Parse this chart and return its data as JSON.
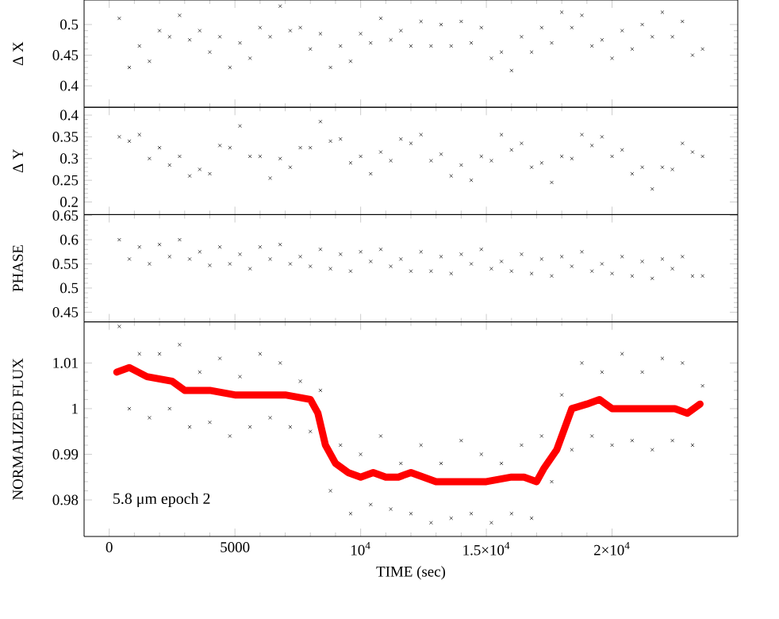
{
  "chart_data": [
    {
      "type": "scatter",
      "ylabel": "Δ X",
      "marker": "cross",
      "tick_labels": "y",
      "xlim": [
        -1000,
        25000
      ],
      "xticks": [
        0,
        5000,
        10000,
        15000,
        20000
      ],
      "ylim": [
        0.365,
        0.54
      ],
      "yticks": [
        0.4,
        0.45,
        0.5
      ],
      "series": [
        {
          "color": "#000000",
          "x": [
            400,
            800,
            1200,
            1600,
            2000,
            2400,
            2800,
            3200,
            3600,
            4000,
            4400,
            4800,
            5200,
            5600,
            6000,
            6400,
            6800,
            7200,
            7600,
            8000,
            8400,
            8800,
            9200,
            9600,
            10000,
            10400,
            10800,
            11200,
            11600,
            12000,
            12400,
            12800,
            13200,
            13600,
            14000,
            14400,
            14800,
            15200,
            15600,
            16000,
            16400,
            16800,
            17200,
            17600,
            18000,
            18400,
            18800,
            19200,
            19600,
            20000,
            20400,
            20800,
            21200,
            21600,
            22000,
            22400,
            22800,
            23200,
            23600
          ],
          "values": [
            0.51,
            0.43,
            0.465,
            0.44,
            0.49,
            0.48,
            0.515,
            0.475,
            0.49,
            0.455,
            0.48,
            0.43,
            0.47,
            0.445,
            0.495,
            0.48,
            0.53,
            0.49,
            0.495,
            0.46,
            0.485,
            0.43,
            0.465,
            0.44,
            0.485,
            0.47,
            0.51,
            0.475,
            0.49,
            0.465,
            0.505,
            0.465,
            0.5,
            0.465,
            0.505,
            0.47,
            0.495,
            0.445,
            0.455,
            0.425,
            0.48,
            0.455,
            0.495,
            0.47,
            0.52,
            0.495,
            0.515,
            0.465,
            0.475,
            0.445,
            0.49,
            0.46,
            0.5,
            0.48,
            0.52,
            0.48,
            0.505,
            0.45,
            0.46
          ]
        }
      ]
    },
    {
      "type": "scatter",
      "ylabel": "Δ Y",
      "marker": "cross",
      "tick_labels": "y",
      "xlim": [
        -1000,
        25000
      ],
      "xticks": [
        0,
        5000,
        10000,
        15000,
        20000
      ],
      "ylim": [
        0.171,
        0.418
      ],
      "yticks": [
        0.2,
        0.25,
        0.3,
        0.35,
        0.4
      ],
      "series": [
        {
          "color": "#000000",
          "x": [
            400,
            800,
            1200,
            1600,
            2000,
            2400,
            2800,
            3200,
            3600,
            4000,
            4400,
            4800,
            5200,
            5600,
            6000,
            6400,
            6800,
            7200,
            7600,
            8000,
            8400,
            8800,
            9200,
            9600,
            10000,
            10400,
            10800,
            11200,
            11600,
            12000,
            12400,
            12800,
            13200,
            13600,
            14000,
            14400,
            14800,
            15200,
            15600,
            16000,
            16400,
            16800,
            17200,
            17600,
            18000,
            18400,
            18800,
            19200,
            19600,
            20000,
            20400,
            20800,
            21200,
            21600,
            22000,
            22400,
            22800,
            23200,
            23600
          ],
          "values": [
            0.35,
            0.34,
            0.355,
            0.3,
            0.325,
            0.285,
            0.305,
            0.26,
            0.275,
            0.265,
            0.33,
            0.325,
            0.375,
            0.305,
            0.305,
            0.255,
            0.3,
            0.28,
            0.325,
            0.325,
            0.385,
            0.34,
            0.345,
            0.29,
            0.305,
            0.265,
            0.315,
            0.295,
            0.345,
            0.335,
            0.355,
            0.295,
            0.31,
            0.26,
            0.285,
            0.25,
            0.305,
            0.295,
            0.355,
            0.32,
            0.335,
            0.28,
            0.29,
            0.245,
            0.305,
            0.3,
            0.355,
            0.33,
            0.35,
            0.305,
            0.32,
            0.265,
            0.28,
            0.23,
            0.28,
            0.275,
            0.335,
            0.315,
            0.305
          ]
        }
      ]
    },
    {
      "type": "scatter",
      "ylabel": "PHASE",
      "marker": "cross",
      "tick_labels": "y",
      "xlim": [
        -1000,
        25000
      ],
      "xticks": [
        0,
        5000,
        10000,
        15000,
        20000
      ],
      "ylim": [
        0.43,
        0.652
      ],
      "yticks": [
        0.45,
        0.5,
        0.55,
        0.6,
        0.65
      ],
      "series": [
        {
          "color": "#000000",
          "x": [
            400,
            800,
            1200,
            1600,
            2000,
            2400,
            2800,
            3200,
            3600,
            4000,
            4400,
            4800,
            5200,
            5600,
            6000,
            6400,
            6800,
            7200,
            7600,
            8000,
            8400,
            8800,
            9200,
            9600,
            10000,
            10400,
            10800,
            11200,
            11600,
            12000,
            12400,
            12800,
            13200,
            13600,
            14000,
            14400,
            14800,
            15200,
            15600,
            16000,
            16400,
            16800,
            17200,
            17600,
            18000,
            18400,
            18800,
            19200,
            19600,
            20000,
            20400,
            20800,
            21200,
            21600,
            22000,
            22400,
            22800,
            23200,
            23600
          ],
          "values": [
            0.6,
            0.56,
            0.585,
            0.55,
            0.59,
            0.565,
            0.6,
            0.56,
            0.575,
            0.547,
            0.585,
            0.55,
            0.57,
            0.54,
            0.585,
            0.56,
            0.59,
            0.55,
            0.565,
            0.545,
            0.58,
            0.54,
            0.57,
            0.535,
            0.575,
            0.555,
            0.58,
            0.545,
            0.56,
            0.535,
            0.575,
            0.535,
            0.565,
            0.53,
            0.57,
            0.55,
            0.58,
            0.54,
            0.555,
            0.535,
            0.57,
            0.53,
            0.56,
            0.525,
            0.565,
            0.545,
            0.575,
            0.535,
            0.55,
            0.53,
            0.565,
            0.525,
            0.555,
            0.52,
            0.56,
            0.54,
            0.565,
            0.525,
            0.525
          ]
        }
      ]
    },
    {
      "type": "scatter",
      "ylabel": "NORMALIZED FLUX",
      "xlabel": "TIME (sec)",
      "marker": "cross",
      "xlim": [
        -1000,
        25000
      ],
      "xticks": [
        0,
        5000,
        {
          "value": 10000,
          "label": "10$^{4}$"
        },
        {
          "value": 15000,
          "label": "1.5×10$^{4}$"
        },
        {
          "value": 20000,
          "label": "2×10$^{4}$"
        }
      ],
      "ylim": [
        0.972,
        1.019
      ],
      "yticks": [
        0.98,
        0.99,
        1,
        1.01
      ],
      "annotations": [
        "5.8 μm epoch 2"
      ],
      "series": [
        {
          "color": "#000000",
          "x": [
            400,
            800,
            1200,
            1600,
            2000,
            2400,
            2800,
            3200,
            3600,
            4000,
            4400,
            4800,
            5200,
            5600,
            6000,
            6400,
            6800,
            7200,
            7600,
            8000,
            8400,
            8800,
            9200,
            9600,
            10000,
            10400,
            10800,
            11200,
            11600,
            12000,
            12400,
            12800,
            13200,
            13600,
            14000,
            14400,
            14800,
            15200,
            15600,
            16000,
            16400,
            16800,
            17200,
            17600,
            18000,
            18400,
            18800,
            19200,
            19600,
            20000,
            20400,
            20800,
            21200,
            21600,
            22000,
            22400,
            22800,
            23200,
            23600
          ],
          "values": [
            1.018,
            1.0,
            1.012,
            0.998,
            1.012,
            1.0,
            1.014,
            0.996,
            1.008,
            0.997,
            1.011,
            0.994,
            1.007,
            0.996,
            1.012,
            0.998,
            1.01,
            0.996,
            1.006,
            0.995,
            1.004,
            0.982,
            0.992,
            0.977,
            0.99,
            0.979,
            0.994,
            0.978,
            0.988,
            0.977,
            0.992,
            0.975,
            0.988,
            0.976,
            0.993,
            0.977,
            0.99,
            0.975,
            0.988,
            0.977,
            0.992,
            0.976,
            0.994,
            0.984,
            1.003,
            0.991,
            1.01,
            0.994,
            1.008,
            0.992,
            1.012,
            0.993,
            1.008,
            0.991,
            1.011,
            0.993,
            1.01,
            0.992,
            1.005
          ]
        },
        {
          "type": "line",
          "marker": "none",
          "color": "#ff0000",
          "x": [
            300,
            800,
            1500,
            2500,
            3000,
            4000,
            5000,
            6000,
            7000,
            8000,
            8300,
            8600,
            9000,
            9500,
            10000,
            10500,
            11000,
            11500,
            12000,
            12500,
            13000,
            14000,
            15000,
            16000,
            16500,
            17000,
            17300,
            17800,
            18400,
            19000,
            19500,
            20000,
            20500,
            21500,
            22500,
            23000,
            23500
          ],
          "values": [
            1.008,
            1.009,
            1.007,
            1.006,
            1.004,
            1.004,
            1.003,
            1.003,
            1.003,
            1.002,
            0.999,
            0.992,
            0.988,
            0.986,
            0.985,
            0.986,
            0.985,
            0.985,
            0.986,
            0.985,
            0.984,
            0.984,
            0.984,
            0.985,
            0.985,
            0.984,
            0.987,
            0.991,
            1.0,
            1.001,
            1.002,
            1.0,
            1.0,
            1.0,
            1.0,
            0.999,
            1.001
          ]
        }
      ]
    }
  ]
}
